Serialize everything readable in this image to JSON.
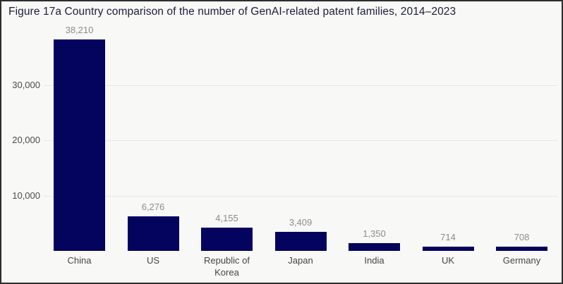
{
  "title": "Figure 17a Country comparison of the number of GenAI-related patent families, 2014–2023",
  "colors": {
    "bar": "#04045e",
    "background": "#f8f8f6",
    "border": "#2e2e2e",
    "gridline": "#e6e6e3",
    "tick_label": "#4b4b4b",
    "value_label": "#8c8c8c",
    "category_label": "#454545",
    "title": "#1c1c3c"
  },
  "chart_data": {
    "type": "bar",
    "title": "Figure 17a Country comparison of the number of GenAI-related patent families, 2014–2023",
    "categories": [
      "China",
      "US",
      "Republic of Korea",
      "Japan",
      "India",
      "UK",
      "Germany"
    ],
    "values": [
      38210,
      6276,
      4155,
      3409,
      1350,
      714,
      708
    ],
    "value_labels": [
      "38,210",
      "6,276",
      "4,155",
      "3,409",
      "1,350",
      "714",
      "708"
    ],
    "yticks": [
      {
        "value": 10000,
        "label": "10,000"
      },
      {
        "value": 20000,
        "label": "20,000"
      },
      {
        "value": 30000,
        "label": "30,000"
      }
    ],
    "ylim": [
      0,
      38500
    ],
    "xlabel": "",
    "ylabel": "",
    "grid": "horizontal-only",
    "legend": "none"
  }
}
